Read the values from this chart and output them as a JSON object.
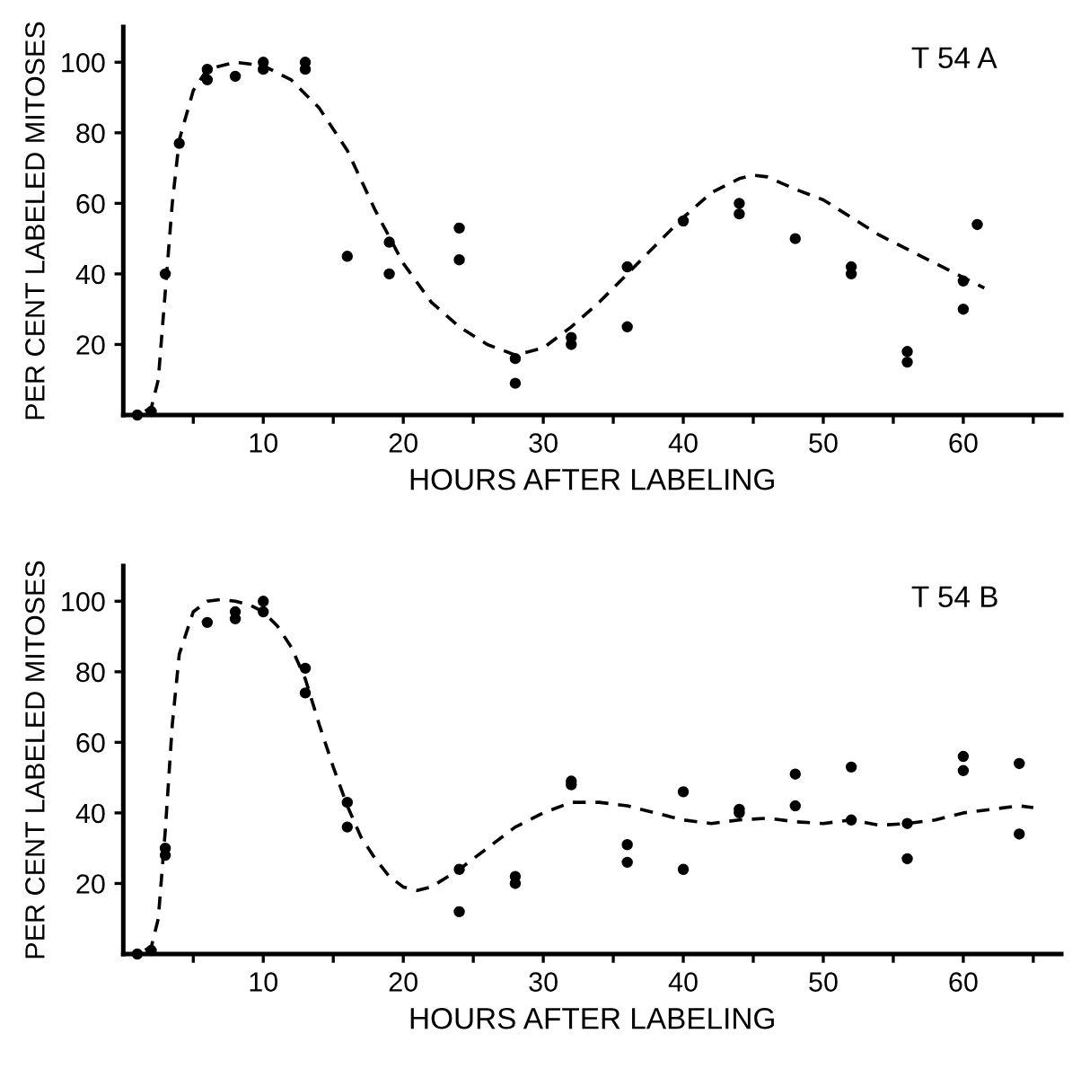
{
  "chart_data": [
    {
      "type": "scatter",
      "xlabel": "HOURS AFTER LABELING",
      "ylabel": "PER CENT LABELED MITOSES",
      "annotations": [
        "T 54 A"
      ],
      "xlim": [
        0,
        67
      ],
      "ylim": [
        0,
        110
      ],
      "xticks": [
        {
          "value": 5,
          "label": null
        },
        10,
        {
          "value": 15,
          "label": null
        },
        20,
        {
          "value": 25,
          "label": null
        },
        30,
        {
          "value": 35,
          "label": null
        },
        40,
        {
          "value": 45,
          "label": null
        },
        50,
        {
          "value": 55,
          "label": null
        },
        60,
        {
          "value": 65,
          "label": null
        }
      ],
      "yticks": [
        20,
        40,
        60,
        80,
        100
      ],
      "grid": false,
      "legend": false,
      "series": [
        {
          "color": "#000000",
          "marker": "circle",
          "x": [
            1,
            2,
            3,
            4,
            6,
            6,
            8,
            10,
            10,
            13,
            13,
            16,
            19,
            19,
            24,
            24,
            28,
            28,
            32,
            32,
            36,
            36,
            40,
            44,
            44,
            48,
            52,
            52,
            56,
            56,
            60,
            60,
            61
          ],
          "values": [
            0,
            1,
            40,
            77,
            95,
            98,
            96,
            98,
            100,
            98,
            100,
            45,
            40,
            49,
            44,
            53,
            9,
            16,
            20,
            22,
            25,
            42,
            55,
            57,
            60,
            50,
            40,
            42,
            15,
            18,
            30,
            38,
            54
          ]
        },
        {
          "type": "line",
          "color": "#000000",
          "line_style": "dashed",
          "marker": "none",
          "x": [
            0,
            1,
            2,
            2.5,
            3,
            3.5,
            4,
            5,
            6,
            8,
            10,
            12,
            14,
            16,
            18,
            20,
            22,
            24,
            26,
            28,
            30,
            32,
            34,
            36,
            38,
            40,
            42,
            44,
            45,
            46,
            48,
            50,
            52,
            54,
            56,
            58,
            60,
            61.5
          ],
          "values": [
            0,
            0,
            2,
            10,
            35,
            60,
            78,
            92,
            98,
            100,
            99,
            95,
            87,
            75,
            58,
            43,
            32,
            25,
            20,
            17,
            19,
            25,
            32,
            40,
            48,
            56,
            63,
            67,
            68,
            67.5,
            64,
            61,
            56,
            51,
            47,
            43,
            39,
            36
          ]
        }
      ]
    },
    {
      "type": "scatter",
      "xlabel": "HOURS AFTER LABELING",
      "ylabel": "PER CENT LABELED MITOSES",
      "annotations": [
        "T 54 B"
      ],
      "xlim": [
        0,
        67
      ],
      "ylim": [
        0,
        110
      ],
      "xticks": [
        {
          "value": 5,
          "label": null
        },
        10,
        {
          "value": 15,
          "label": null
        },
        20,
        {
          "value": 25,
          "label": null
        },
        30,
        {
          "value": 35,
          "label": null
        },
        40,
        {
          "value": 45,
          "label": null
        },
        50,
        {
          "value": 55,
          "label": null
        },
        60,
        {
          "value": 65,
          "label": null
        }
      ],
      "yticks": [
        20,
        40,
        60,
        80,
        100
      ],
      "grid": false,
      "legend": false,
      "series": [
        {
          "color": "#000000",
          "marker": "circle",
          "x": [
            1,
            2,
            3,
            3,
            6,
            8,
            8,
            10,
            10,
            13,
            13,
            16,
            16,
            24,
            24,
            28,
            28,
            32,
            32,
            36,
            36,
            40,
            40,
            44,
            44,
            48,
            48,
            52,
            52,
            56,
            56,
            60,
            60,
            64,
            64
          ],
          "values": [
            0,
            1,
            28,
            30,
            94,
            95,
            97,
            97,
            100,
            74,
            81,
            36,
            43,
            12,
            24,
            20,
            22,
            48,
            49,
            26,
            31,
            24,
            46,
            40,
            41,
            42,
            51,
            38,
            53,
            27,
            37,
            52,
            56,
            34,
            54
          ]
        },
        {
          "type": "line",
          "color": "#000000",
          "line_style": "dashed",
          "marker": "none",
          "x": [
            0,
            1,
            2,
            2.5,
            3,
            3.5,
            4,
            5,
            6,
            7,
            8,
            9,
            10,
            11,
            12,
            13,
            14,
            15,
            16,
            17,
            18,
            19,
            20,
            21,
            22,
            24,
            26,
            28,
            30,
            32,
            34,
            36,
            38,
            40,
            42,
            44,
            46,
            48,
            50,
            52,
            54,
            56,
            58,
            60,
            62,
            64,
            65
          ],
          "values": [
            0,
            0,
            2,
            10,
            35,
            65,
            85,
            97,
            100,
            100.5,
            100,
            99,
            97,
            93,
            87,
            78,
            65,
            53,
            42,
            33,
            27,
            22,
            19,
            18,
            19,
            24,
            30,
            36,
            40,
            43,
            43,
            42,
            40,
            38,
            37,
            38,
            38.5,
            37.5,
            37,
            38,
            36.5,
            37,
            38,
            40,
            41,
            42,
            41.5
          ]
        }
      ]
    }
  ]
}
